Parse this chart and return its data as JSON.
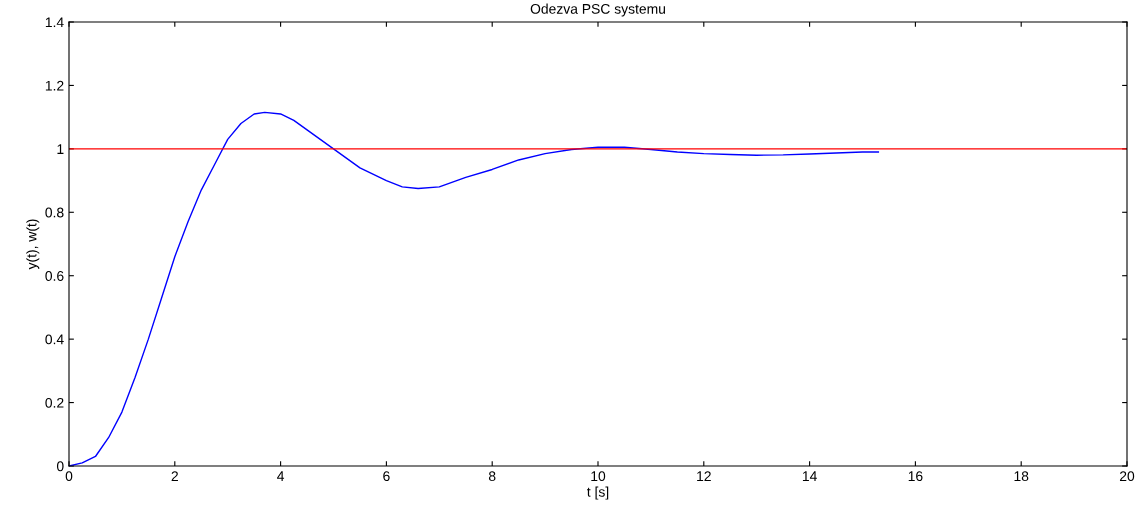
{
  "chart_data": {
    "type": "line",
    "title": "Odezva PSC systemu",
    "xlabel": "t [s]",
    "ylabel": "y(t), w(t)",
    "xlim": [
      0,
      20
    ],
    "ylim": [
      0,
      1.4
    ],
    "xticks": [
      0,
      2,
      4,
      6,
      8,
      10,
      12,
      14,
      16,
      18,
      20
    ],
    "yticks": [
      0,
      0.2,
      0.4,
      0.6,
      0.8,
      1,
      1.2,
      1.4
    ],
    "grid": false,
    "legend": false,
    "line_style": "solid",
    "marker": "none",
    "series": [
      {
        "color": "#0000ff",
        "x": [
          0,
          0.25,
          0.5,
          0.75,
          1,
          1.25,
          1.5,
          1.75,
          2,
          2.25,
          2.5,
          2.75,
          3,
          3.25,
          3.5,
          3.7,
          4,
          4.25,
          4.5,
          4.75,
          5,
          5.5,
          6,
          6.3,
          6.6,
          7,
          7.5,
          8,
          8.5,
          9,
          9.5,
          10,
          10.5,
          11,
          11.5,
          12,
          12.5,
          13,
          13.5,
          14,
          14.5,
          15,
          15.3
        ],
        "values": [
          0,
          0.01,
          0.03,
          0.09,
          0.17,
          0.28,
          0.4,
          0.53,
          0.66,
          0.77,
          0.87,
          0.95,
          1.03,
          1.08,
          1.11,
          1.115,
          1.11,
          1.09,
          1.06,
          1.03,
          1.0,
          0.94,
          0.9,
          0.88,
          0.875,
          0.88,
          0.91,
          0.935,
          0.965,
          0.985,
          0.998,
          1.005,
          1.005,
          0.998,
          0.99,
          0.985,
          0.982,
          0.98,
          0.981,
          0.984,
          0.987,
          0.99,
          0.99
        ]
      },
      {
        "color": "#ff0000",
        "x": [
          0,
          20
        ],
        "values": [
          1,
          1
        ]
      }
    ]
  }
}
